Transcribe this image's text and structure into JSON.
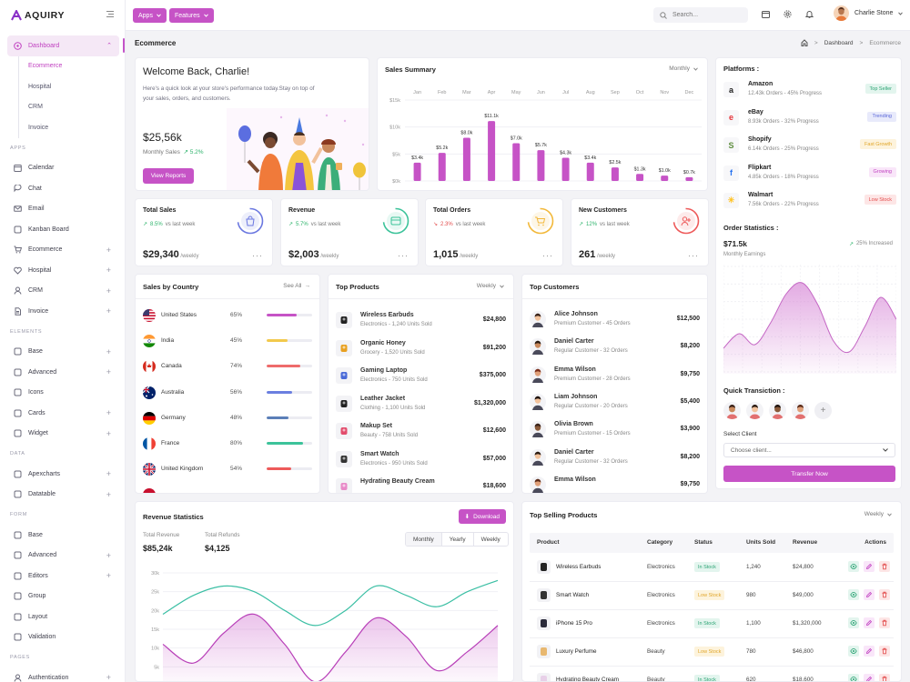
{
  "app": {
    "name": "AQUIRY"
  },
  "header": {
    "apps_label": "Apps",
    "features_label": "Features",
    "search_placeholder": "Search...",
    "user_name": "Charlie Stone"
  },
  "sidebar": {
    "dashboard": {
      "label": "Dashboard",
      "subs": [
        "Ecommerce",
        "Hospital",
        "CRM",
        "Invoice"
      ]
    },
    "sections": {
      "apps": "APPS",
      "elements": "ELEMENTS",
      "data": "DATA",
      "form": "FORM",
      "pages": "PAGES"
    },
    "apps": [
      "Calendar",
      "Chat",
      "Email",
      "Kanban Board",
      "Ecommerce",
      "Hospital",
      "CRM",
      "Invoice"
    ],
    "elements": [
      "Base",
      "Advanced",
      "Icons",
      "Cards",
      "Widget"
    ],
    "data": [
      "Apexcharts",
      "Datatable"
    ],
    "form": [
      "Base",
      "Advanced",
      "Editors",
      "Group",
      "Layout",
      "Validation"
    ],
    "pages": [
      "Authentication"
    ]
  },
  "page": {
    "title": "Ecommerce",
    "breadcrumb": [
      "Dashboard",
      "Ecommerce"
    ]
  },
  "welcome": {
    "title": "Welcome Back, Charlie!",
    "desc": "Here's a quick look at your store's performance today.Stay on top of your sales, orders, and customers.",
    "amount": "$25,56k",
    "sub_label": "Monthly Sales",
    "sub_change": "5.2%",
    "button": "View Reports"
  },
  "sales_summary": {
    "title": "Sales Summary",
    "filter": "Monthly"
  },
  "chart_data": [
    {
      "type": "bar",
      "title": "Sales Summary",
      "categories": [
        "Jan",
        "Feb",
        "Mar",
        "Apr",
        "May",
        "Jun",
        "Jul",
        "Aug",
        "Sep",
        "Oct",
        "Nov",
        "Dec"
      ],
      "values": [
        3.4,
        5.2,
        8.0,
        11.1,
        7.0,
        5.7,
        4.3,
        3.4,
        2.5,
        1.3,
        1.0,
        0.7
      ],
      "data_labels": [
        "$3.4k",
        "$5.2k",
        "$8.0k",
        "$11.1k",
        "$7.0k",
        "$5.7k",
        "$4.3k",
        "$3.4k",
        "$2.5k",
        "$1.3k",
        "$1.0k",
        "$0.7k"
      ],
      "yticks": [
        "$0k",
        "$5k",
        "$10k",
        "$15k"
      ],
      "ylim": [
        0,
        15
      ],
      "color": "#c653c6"
    },
    {
      "type": "line",
      "title": "Revenue Statistics",
      "yticks": [
        "0k",
        "5k",
        "10k",
        "15k",
        "20k",
        "25k",
        "30k"
      ],
      "ylim": [
        0,
        30
      ],
      "series": [
        {
          "color": "#3bbfa4",
          "values": [
            19,
            24,
            26.5,
            25,
            20,
            16,
            20,
            26.5,
            24,
            21,
            25,
            28
          ]
        },
        {
          "color": "#b83fb8",
          "values": [
            11,
            6,
            14,
            19,
            11,
            1,
            9,
            18,
            13,
            4,
            9,
            16
          ]
        }
      ]
    },
    {
      "type": "area",
      "title": "Order Statistics",
      "series": [
        {
          "color": "#d98fd9",
          "values": [
            14,
            22,
            16,
            28,
            44,
            50,
            38,
            18,
            12,
            26,
            42,
            30
          ]
        }
      ],
      "ylim": [
        0,
        60
      ]
    }
  ],
  "stats": [
    {
      "title": "Total Sales",
      "change": "8.5%",
      "dir": "up",
      "vs": "vs last week",
      "value": "$29,340",
      "unit": "/weekly",
      "color": "#6b78e0"
    },
    {
      "title": "Revenue",
      "change": "5.7%",
      "dir": "up",
      "vs": "vs last week",
      "value": "$2,003",
      "unit": "/weekly",
      "color": "#3cc39a"
    },
    {
      "title": "Total Orders",
      "change": "2.3%",
      "dir": "down",
      "vs": "vs last week",
      "value": "1,015",
      "unit": "/weekly",
      "color": "#f2b83a"
    },
    {
      "title": "New Customers",
      "change": "12%",
      "dir": "up",
      "vs": "vs last week",
      "value": "261",
      "unit": "/weekly",
      "color": "#ee5a5a"
    }
  ],
  "platforms": {
    "title": "Platforms :",
    "items": [
      {
        "name": "Amazon",
        "sub": "12.43k Orders - 45% Progress",
        "badge": "Top Seller",
        "badge_bg": "#e3f5ee",
        "badge_fg": "#2ba373",
        "glyph": "a",
        "glyph_color": "#222"
      },
      {
        "name": "eBay",
        "sub": "8.93k Orders - 32% Progress",
        "badge": "Trending",
        "badge_bg": "#e8eafb",
        "badge_fg": "#5a66d8",
        "glyph": "e",
        "glyph_color": "#e53238"
      },
      {
        "name": "Shopify",
        "sub": "6.14k Orders - 25% Progress",
        "badge": "Fast Growth",
        "badge_bg": "#fdf3dc",
        "badge_fg": "#e0a528",
        "glyph": "S",
        "glyph_color": "#5e8e3e"
      },
      {
        "name": "Flipkart",
        "sub": "4.85k Orders - 18% Progress",
        "badge": "Growing",
        "badge_bg": "#f9e6f9",
        "badge_fg": "#c040c0",
        "glyph": "f",
        "glyph_color": "#2874f0"
      },
      {
        "name": "Walmart",
        "sub": "7.56k Orders - 22% Progress",
        "badge": "Low Stock",
        "badge_bg": "#fde6e6",
        "badge_fg": "#e34c4c",
        "glyph": "✳",
        "glyph_color": "#ffc220"
      }
    ]
  },
  "order_stats": {
    "title": "Order Statistics :",
    "value": "$71.5k",
    "sub": "Monthly Earnings",
    "change": "25% Increased"
  },
  "quick": {
    "title": "Quick Transiction :",
    "select_label": "Select Client",
    "select_value": "Choose client...",
    "button": "Transfer Now"
  },
  "country": {
    "title": "Sales by Country",
    "see_all": "See All",
    "items": [
      {
        "name": "United States",
        "pct": "65%",
        "value": 65,
        "color": "#c653c6"
      },
      {
        "name": "India",
        "pct": "45%",
        "value": 45,
        "color": "#f2c94c"
      },
      {
        "name": "Canada",
        "pct": "74%",
        "value": 74,
        "color": "#ee6b6b"
      },
      {
        "name": "Australia",
        "pct": "56%",
        "value": 56,
        "color": "#6b7fe0"
      },
      {
        "name": "Germany",
        "pct": "48%",
        "value": 48,
        "color": "#5b7fb8"
      },
      {
        "name": "France",
        "pct": "80%",
        "value": 80,
        "color": "#3cc39a"
      },
      {
        "name": "United Kingdom",
        "pct": "54%",
        "value": 54,
        "color": "#ee5a5a"
      }
    ]
  },
  "top_products": {
    "title": "Top Products",
    "filter": "Weekly",
    "items": [
      {
        "name": "Wireless Earbuds",
        "sub": "Electronics - 1,240 Units Sold",
        "value": "$24,800"
      },
      {
        "name": "Organic Honey",
        "sub": "Grocery - 1,520 Units Sold",
        "value": "$91,200"
      },
      {
        "name": "Gaming Laptop",
        "sub": "Electronics - 750 Units Sold",
        "value": "$375,000"
      },
      {
        "name": "Leather Jacket",
        "sub": "Clothing - 1,100 Units Sold",
        "value": "$1,320,000"
      },
      {
        "name": "Makup Set",
        "sub": "Beauty - 758 Units Sold",
        "value": "$12,600"
      },
      {
        "name": "Smart Watch",
        "sub": "Electronics - 950 Units Sold",
        "value": "$57,000"
      },
      {
        "name": "Hydrating Beauty Cream",
        "sub": "",
        "value": "$18,600"
      }
    ]
  },
  "top_customers": {
    "title": "Top Customers",
    "items": [
      {
        "name": "Alice Johnson",
        "sub": "Premium Customer - 45 Orders",
        "value": "$12,500"
      },
      {
        "name": "Daniel Carter",
        "sub": "Regular Customer - 32 Orders",
        "value": "$8,200"
      },
      {
        "name": "Emma Wilson",
        "sub": "Premium Customer - 28 Orders",
        "value": "$9,750"
      },
      {
        "name": "Liam Johnson",
        "sub": "Regular Customer - 20 Orders",
        "value": "$5,400"
      },
      {
        "name": "Olivia Brown",
        "sub": "Premium Customer - 15 Orders",
        "value": "$3,900"
      },
      {
        "name": "Daniel Carter",
        "sub": "Regular Customer - 32 Orders",
        "value": "$8,200"
      },
      {
        "name": "Emma Wilson",
        "sub": "",
        "value": "$9,750"
      }
    ]
  },
  "revenue_stats": {
    "title": "Revenue Statistics",
    "download": "Download",
    "total_revenue_label": "Total Revenue",
    "total_revenue": "$85,24k",
    "total_refunds_label": "Total Refunds",
    "total_refunds": "$4,125",
    "tabs": [
      "Monthly",
      "Yearly",
      "Weekly"
    ]
  },
  "top_selling": {
    "title": "Top Selling Products",
    "filter": "Weekly",
    "columns": [
      "Product",
      "Category",
      "Status",
      "Units Sold",
      "Revenue",
      "Actions"
    ],
    "rows": [
      {
        "product": "Wireless Earbuds",
        "category": "Electronics",
        "status": "In Stock",
        "units": "1,240",
        "revenue": "$24,800"
      },
      {
        "product": "Smart Watch",
        "category": "Electronics",
        "status": "Low Stock",
        "units": "980",
        "revenue": "$49,000"
      },
      {
        "product": "iPhone 15 Pro",
        "category": "Electronics",
        "status": "In Stock",
        "units": "1,100",
        "revenue": "$1,320,000"
      },
      {
        "product": "Luxury Perfume",
        "category": "Beauty",
        "status": "Low Stock",
        "units": "780",
        "revenue": "$46,800"
      },
      {
        "product": "Hydrating Beauty Cream",
        "category": "Beauty",
        "status": "In Stock",
        "units": "620",
        "revenue": "$18,600"
      }
    ]
  }
}
